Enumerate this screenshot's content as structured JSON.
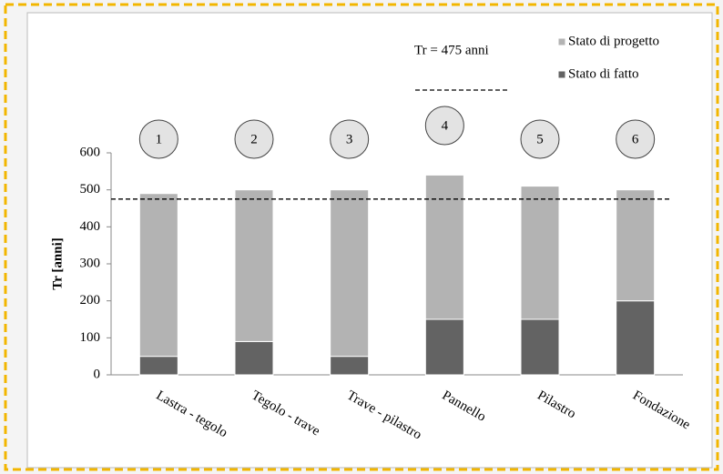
{
  "chart_data": {
    "type": "stacked_bar",
    "categories": [
      "Lastra - tegolo",
      "Tegolo - trave",
      "Trave - pilastro",
      "Pannello",
      "Pilastro",
      "Fondazione"
    ],
    "series": [
      {
        "name": "Stato di fatto",
        "color": "#636363",
        "values": [
          50,
          90,
          50,
          150,
          150,
          200
        ]
      },
      {
        "name": "Stato di progetto",
        "color": "#b3b3b3",
        "values": [
          440,
          410,
          450,
          390,
          360,
          300
        ]
      }
    ],
    "y_label": "Tr [anni]",
    "ylim": [
      0,
      600
    ],
    "yticks": [
      0,
      100,
      200,
      300,
      400,
      500,
      600
    ],
    "threshold": 475,
    "threshold_label": "Tr = 475 anni",
    "circle_labels": [
      "1",
      "2",
      "3",
      "4",
      "5",
      "6"
    ],
    "legend": "top-right"
  }
}
